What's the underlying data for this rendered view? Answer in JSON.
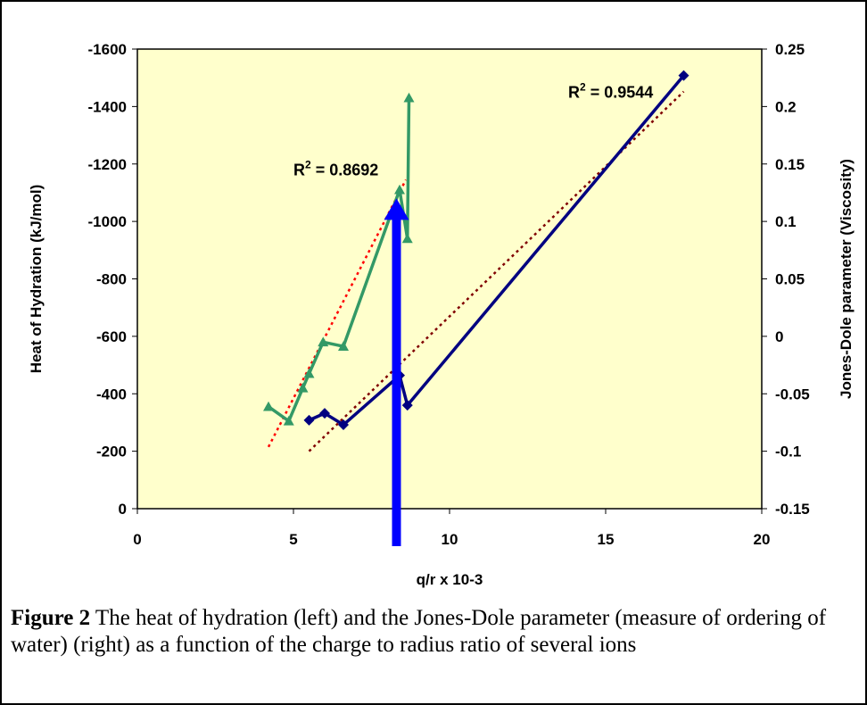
{
  "chart_data": {
    "type": "line",
    "xlabel": "q/r x 10-3",
    "ylabel_left": "Heat of Hydration (kJ/mol)",
    "ylabel_right": "Jones-Dole parameter (Viscosity)",
    "xlim": [
      0,
      20
    ],
    "ylim_left": [
      0,
      -1600
    ],
    "ylim_right": [
      -0.15,
      0.25
    ],
    "x_ticks": [
      "0",
      "5",
      "10",
      "15",
      "20"
    ],
    "y_left_ticks": [
      "0",
      "-200",
      "-400",
      "-600",
      "-800",
      "-1000",
      "-1200",
      "-1400",
      "-1600"
    ],
    "y_right_ticks": [
      "-0.15",
      "-0.1",
      "-0.05",
      "0",
      "0.05",
      "0.1",
      "0.15",
      "0.2",
      "0.25"
    ],
    "plot_background": "#FFFFCC",
    "series": [
      {
        "axis": "left",
        "color": "#339966",
        "marker": "triangle",
        "points": [
          [
            4.2,
            -355
          ],
          [
            4.85,
            -305
          ],
          [
            5.3,
            -420
          ],
          [
            5.5,
            -470
          ],
          [
            5.95,
            -580
          ],
          [
            6.6,
            -565
          ],
          [
            8.4,
            -1110
          ],
          [
            8.65,
            -940
          ],
          [
            8.7,
            -1430
          ]
        ]
      },
      {
        "axis": "right",
        "color": "#000080",
        "marker": "diamond",
        "points": [
          [
            5.5,
            -0.073
          ],
          [
            6.0,
            -0.067
          ],
          [
            6.6,
            -0.077
          ],
          [
            8.4,
            -0.034
          ],
          [
            8.65,
            -0.06
          ],
          [
            17.5,
            0.227
          ]
        ]
      }
    ],
    "trendlines": [
      {
        "axis": "left",
        "color": "#FF0000",
        "x": [
          4.2,
          8.6
        ],
        "y": [
          -215,
          -1145
        ]
      },
      {
        "axis": "right",
        "color": "#800000",
        "x": [
          5.5,
          17.5
        ],
        "y": [
          -0.1,
          0.213
        ]
      }
    ],
    "annotations": [
      {
        "label": "R2 = 0.8692",
        "text_base": "R",
        "superscript": "2",
        "value": " = 0.8692",
        "axis": "left",
        "x": 5.0,
        "y": -1160
      },
      {
        "label": "R2 = 0.9544",
        "text_base": "R",
        "superscript": "2",
        "value": " = 0.9544",
        "axis": "left",
        "x": 13.8,
        "y": -1430
      }
    ],
    "arrow": {
      "color": "#0000FF",
      "direction": "up",
      "x": 8.3,
      "y_top": 0.12
    }
  },
  "caption": {
    "label": "Figure 2",
    "text": " The heat of hydration (left) and the Jones-Dole parameter (measure of ordering of water) (right) as a function of the charge to radius ratio of several ions"
  }
}
